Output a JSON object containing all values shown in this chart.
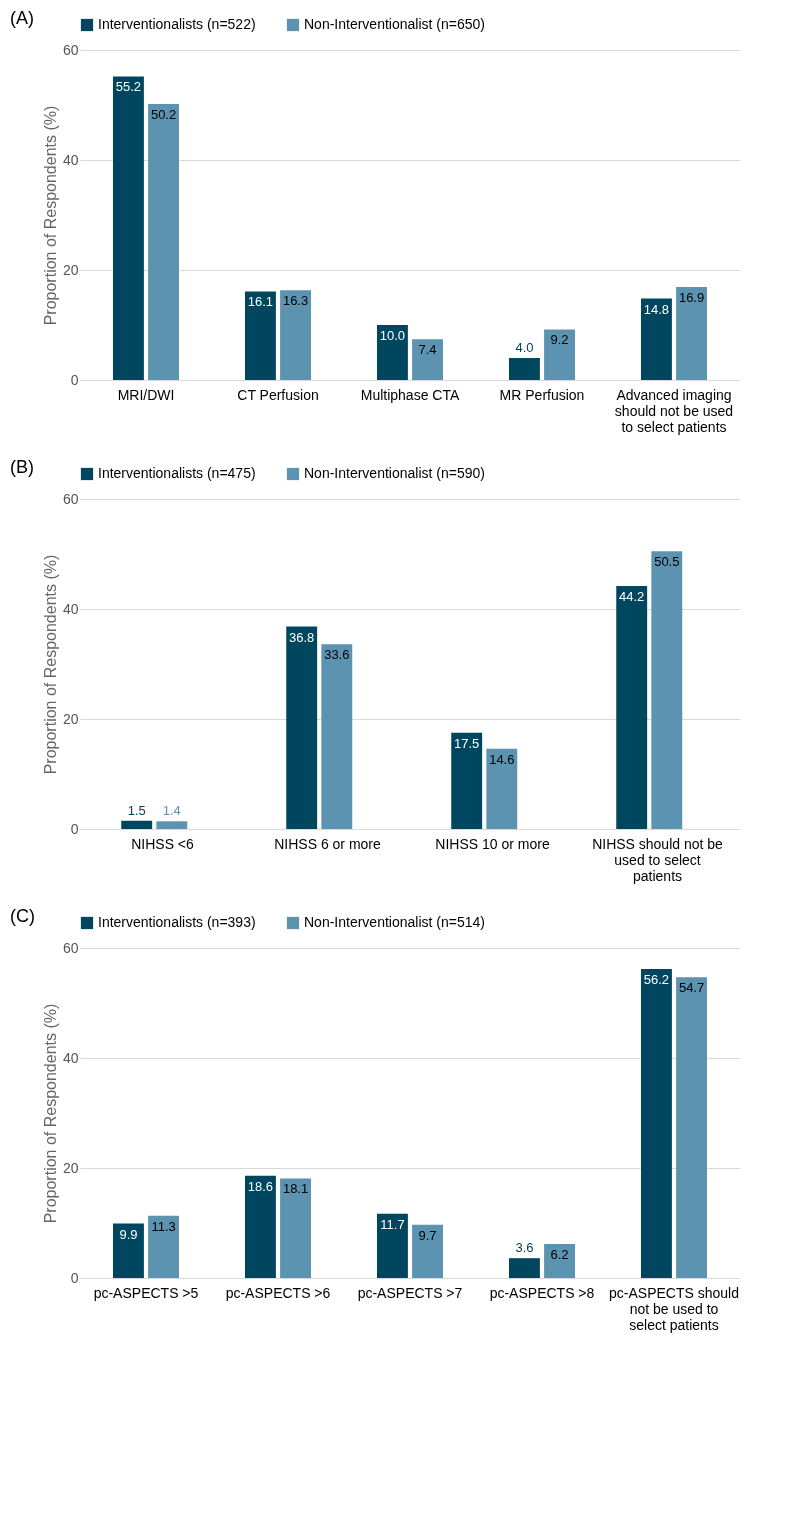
{
  "chart_data": [
    {
      "type": "bar",
      "title": "(A)",
      "ylabel": "Proportion of Respondents (%)",
      "categories": [
        "MRI/DWI",
        "CT Perfusion",
        "Multiphase CTA",
        "MR Perfusion",
        "Advanced imaging should not be used to select patients"
      ],
      "series": [
        {
          "name": "Interventionalists (n=522)",
          "color": "#00465e",
          "values": [
            55.2,
            16.1,
            10.0,
            4.0,
            14.8
          ],
          "value_labels": [
            "55.2",
            "16.1",
            "10.0",
            "4.0",
            "14.8"
          ]
        },
        {
          "name": "Non-Interventionalist (n=650)",
          "color": "#5b93b1",
          "values": [
            50.2,
            16.3,
            7.4,
            9.2,
            16.9
          ],
          "value_labels": [
            "50.2",
            "16.3",
            "7.4",
            "9.2",
            "16.9"
          ]
        }
      ],
      "ylim": [
        0,
        60
      ],
      "yticks": [
        0,
        20,
        40,
        60
      ],
      "grid": "y",
      "legend": "top"
    },
    {
      "type": "bar",
      "title": "(B)",
      "ylabel": "Proportion of Respondents (%)",
      "categories": [
        "NIHSS <6",
        "NIHSS 6 or more",
        "NIHSS 10 or more",
        "NIHSS should not be used to select patients"
      ],
      "series": [
        {
          "name": "Interventionalists (n=475)",
          "color": "#00465e",
          "values": [
            1.5,
            36.8,
            17.5,
            44.2
          ],
          "value_labels": [
            "1.5",
            "36.8",
            "17.5",
            "44.2"
          ]
        },
        {
          "name": "Non-Interventionalist (n=590)",
          "color": "#5b93b1",
          "values": [
            1.4,
            33.6,
            14.6,
            50.5
          ],
          "value_labels": [
            "1.4",
            "33.6",
            "14.6",
            "50.5"
          ]
        }
      ],
      "ylim": [
        0,
        60
      ],
      "yticks": [
        0,
        20,
        40,
        60
      ],
      "grid": "y",
      "legend": "top"
    },
    {
      "type": "bar",
      "title": "(C)",
      "ylabel": "Proportion of Respondents (%)",
      "categories": [
        "pc-ASPECTS >5",
        "pc-ASPECTS >6",
        "pc-ASPECTS >7",
        "pc-ASPECTS >8",
        "pc-ASPECTS should not be used to select patients"
      ],
      "series": [
        {
          "name": "Interventionalists (n=393)",
          "color": "#00465e",
          "values": [
            9.9,
            18.6,
            11.7,
            3.6,
            56.2
          ],
          "value_labels": [
            "9.9",
            "18.6",
            "11.7",
            "3.6",
            "56.2"
          ]
        },
        {
          "name": "Non-Interventionalist (n=514)",
          "color": "#5b93b1",
          "values": [
            11.3,
            18.1,
            9.7,
            6.2,
            54.7
          ],
          "value_labels": [
            "11.3",
            "18.1",
            "9.7",
            "6.2",
            "54.7"
          ]
        }
      ],
      "ylim": [
        0,
        60
      ],
      "yticks": [
        0,
        20,
        40,
        60
      ],
      "grid": "y",
      "legend": "top"
    }
  ]
}
